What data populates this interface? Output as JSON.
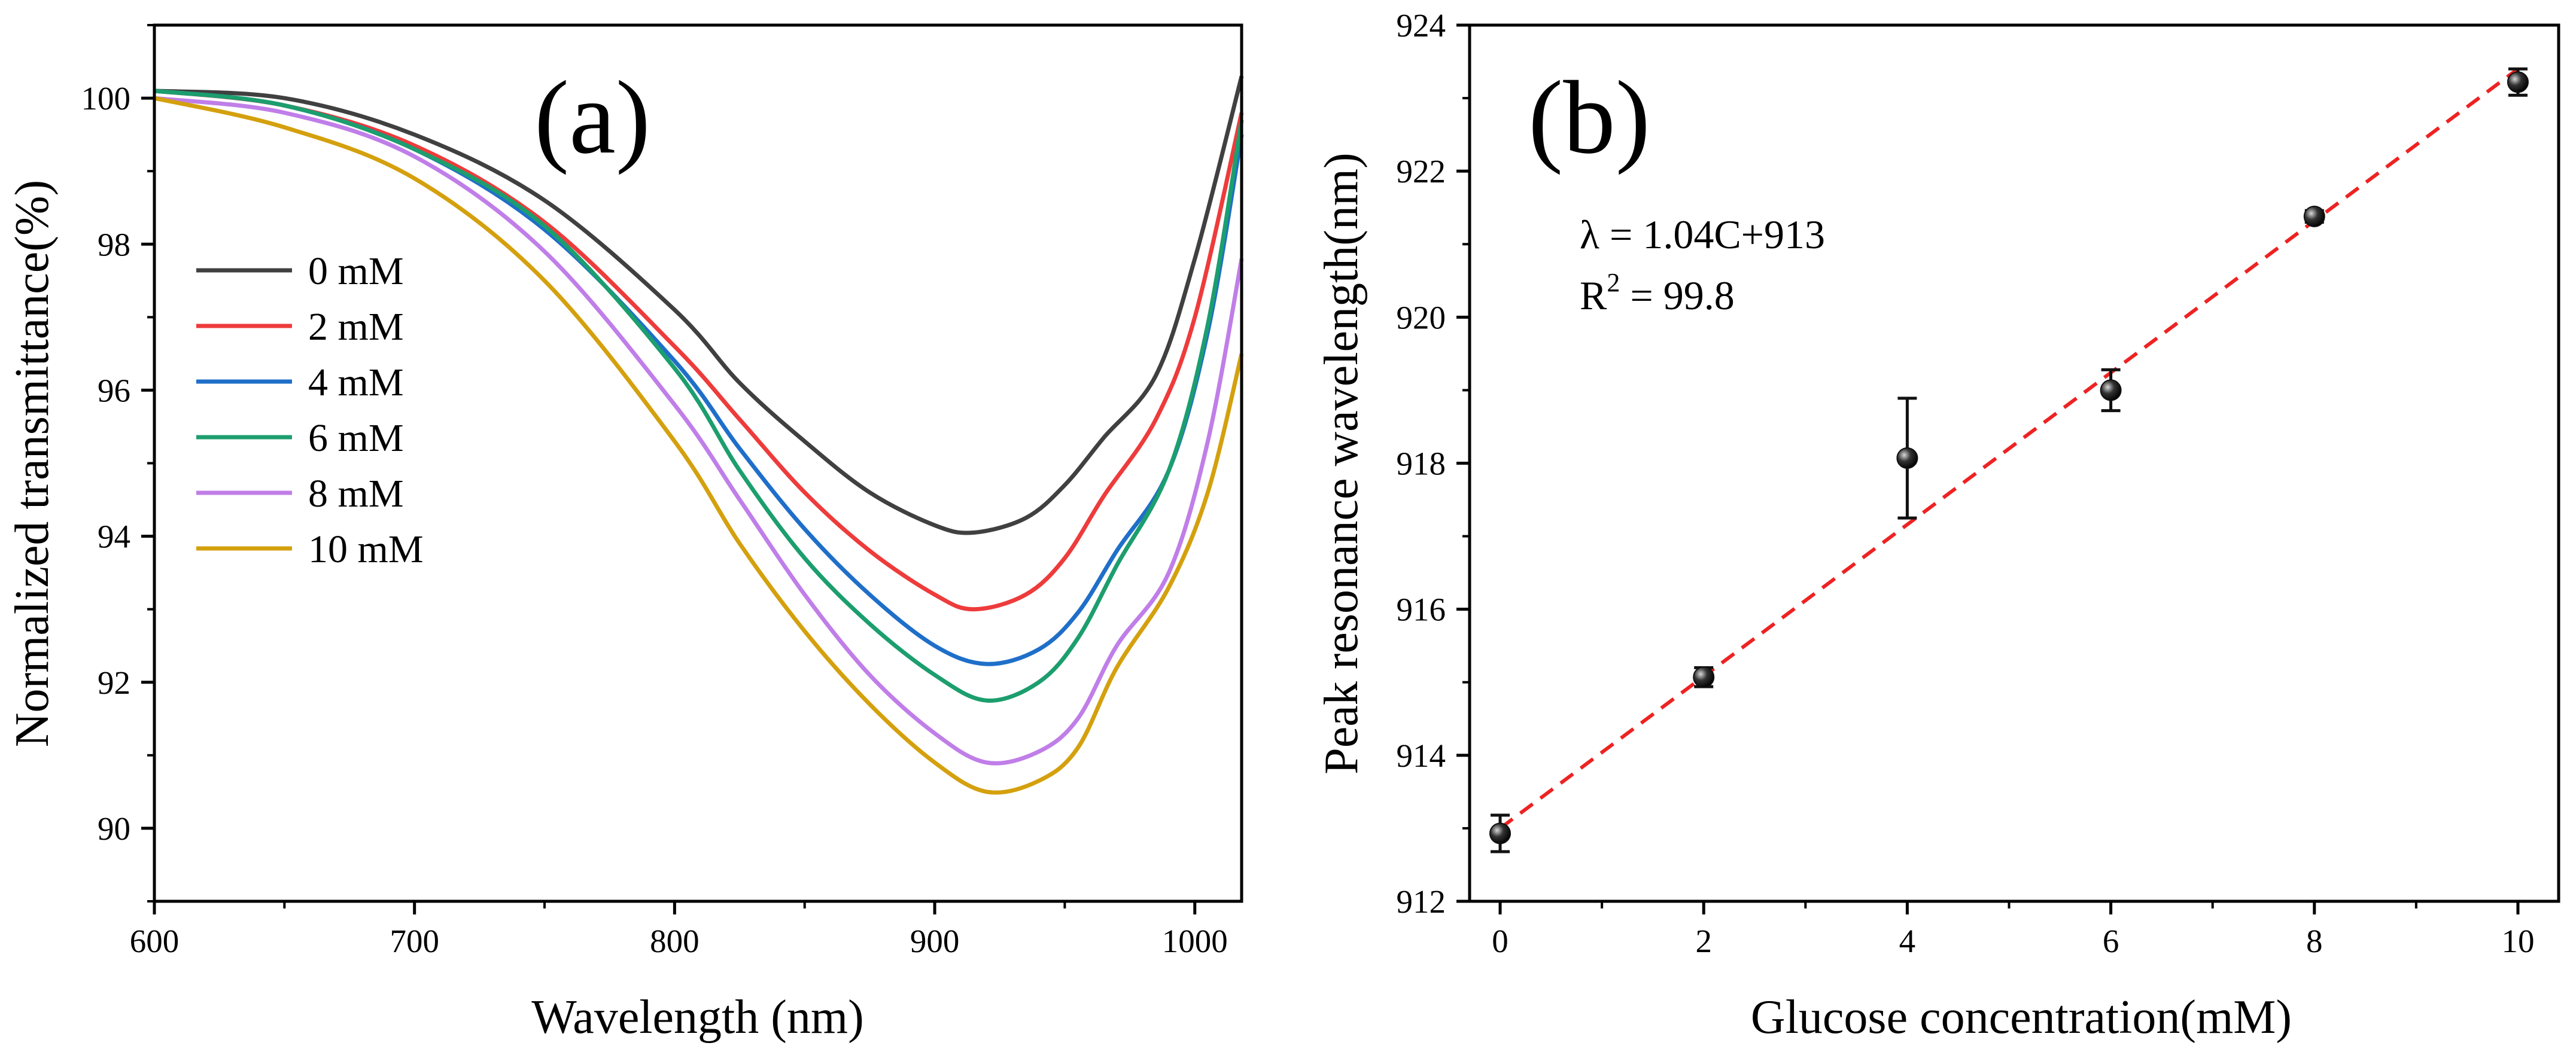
{
  "chart_data": [
    {
      "type": "line",
      "panel_label": "(a)",
      "title": "",
      "xlabel": "Wavelength (nm)",
      "ylabel": "Normalized transmittance(%)",
      "xlim": [
        600,
        1018
      ],
      "ylim": [
        89,
        101
      ],
      "xticks": [
        600,
        700,
        800,
        900,
        1000
      ],
      "yticks": [
        90,
        92,
        94,
        96,
        98,
        100
      ],
      "xtick_labels": [
        "600",
        "700",
        "800",
        "900",
        "1000"
      ],
      "ytick_labels": [
        "90",
        "92",
        "94",
        "96",
        "98",
        "100"
      ],
      "grid": false,
      "legend_position": "left-middle",
      "series": [
        {
          "name": "0 mM",
          "color": "#404040",
          "x": [
            600,
            650,
            700,
            750,
            800,
            825,
            850,
            875,
            900,
            915,
            935,
            950,
            965,
            985,
            1000,
            1018
          ],
          "y": [
            100.1,
            100.0,
            99.5,
            98.6,
            97.1,
            96.1,
            95.3,
            94.6,
            94.15,
            94.05,
            94.25,
            94.7,
            95.35,
            96.2,
            97.8,
            100.3
          ]
        },
        {
          "name": "2 mM",
          "color": "#ee3b3b",
          "x": [
            600,
            650,
            700,
            750,
            800,
            825,
            850,
            875,
            900,
            915,
            935,
            950,
            965,
            985,
            1000,
            1018
          ],
          "y": [
            100.1,
            99.9,
            99.35,
            98.3,
            96.6,
            95.6,
            94.6,
            93.8,
            93.2,
            93.0,
            93.2,
            93.7,
            94.55,
            95.6,
            97.0,
            99.8
          ]
        },
        {
          "name": "4 mM",
          "color": "#1f6fc9",
          "x": [
            600,
            650,
            700,
            750,
            800,
            825,
            850,
            875,
            900,
            920,
            940,
            955,
            970,
            990,
            1005,
            1018
          ],
          "y": [
            100.1,
            99.9,
            99.3,
            98.2,
            96.4,
            95.2,
            94.1,
            93.2,
            92.5,
            92.25,
            92.45,
            92.95,
            93.8,
            94.9,
            96.8,
            99.5
          ]
        },
        {
          "name": "6 mM",
          "color": "#1c9e6e",
          "x": [
            600,
            650,
            700,
            750,
            800,
            825,
            850,
            875,
            900,
            920,
            940,
            955,
            970,
            990,
            1005,
            1018
          ],
          "y": [
            100.1,
            99.9,
            99.3,
            98.25,
            96.3,
            94.9,
            93.7,
            92.8,
            92.1,
            91.75,
            92.0,
            92.6,
            93.6,
            94.9,
            96.9,
            99.7
          ]
        },
        {
          "name": "8 mM",
          "color": "#c07ee8",
          "x": [
            600,
            650,
            700,
            750,
            800,
            825,
            850,
            875,
            900,
            920,
            940,
            955,
            970,
            990,
            1005,
            1018
          ],
          "y": [
            100.0,
            99.8,
            99.2,
            97.9,
            95.8,
            94.5,
            93.2,
            92.1,
            91.3,
            90.9,
            91.05,
            91.5,
            92.5,
            93.5,
            95.3,
            97.8
          ]
        },
        {
          "name": "10 mM",
          "color": "#d4a00d",
          "x": [
            600,
            650,
            700,
            750,
            800,
            825,
            850,
            875,
            900,
            920,
            940,
            955,
            970,
            990,
            1005,
            1018
          ],
          "y": [
            100.0,
            99.6,
            98.9,
            97.5,
            95.3,
            93.9,
            92.7,
            91.7,
            90.9,
            90.5,
            90.65,
            91.1,
            92.2,
            93.3,
            94.6,
            96.5
          ]
        }
      ]
    },
    {
      "type": "scatter",
      "panel_label": "(b)",
      "title": "",
      "xlabel": "Glucose concentration(mM)",
      "ylabel": "Peak resonance wavelength(nm)",
      "xlim": [
        -0.3,
        10.4
      ],
      "ylim": [
        912,
        924
      ],
      "xticks": [
        0,
        2,
        4,
        6,
        8,
        10
      ],
      "yticks": [
        912,
        914,
        916,
        918,
        920,
        922,
        924
      ],
      "xtick_labels": [
        "0",
        "2",
        "4",
        "6",
        "8",
        "10"
      ],
      "ytick_labels": [
        "912",
        "914",
        "916",
        "918",
        "920",
        "922",
        "924"
      ],
      "grid": false,
      "point_color": "#111111",
      "points": {
        "x": [
          0,
          2,
          4,
          6,
          8,
          10
        ],
        "y": [
          912.93,
          915.07,
          918.07,
          919.0,
          921.38,
          923.22
        ],
        "yerr": [
          0.25,
          0.13,
          0.82,
          0.28,
          0.08,
          0.18
        ]
      },
      "fit": {
        "slope": 1.04,
        "intercept": 913,
        "x_range": [
          0,
          10
        ],
        "color": "#ee2222",
        "style": "dashed"
      },
      "annotation": {
        "equation": "λ = 1.04C+913",
        "r2_prefix": "R",
        "r2_power": "2",
        "r2_value": " = 99.8"
      }
    }
  ]
}
